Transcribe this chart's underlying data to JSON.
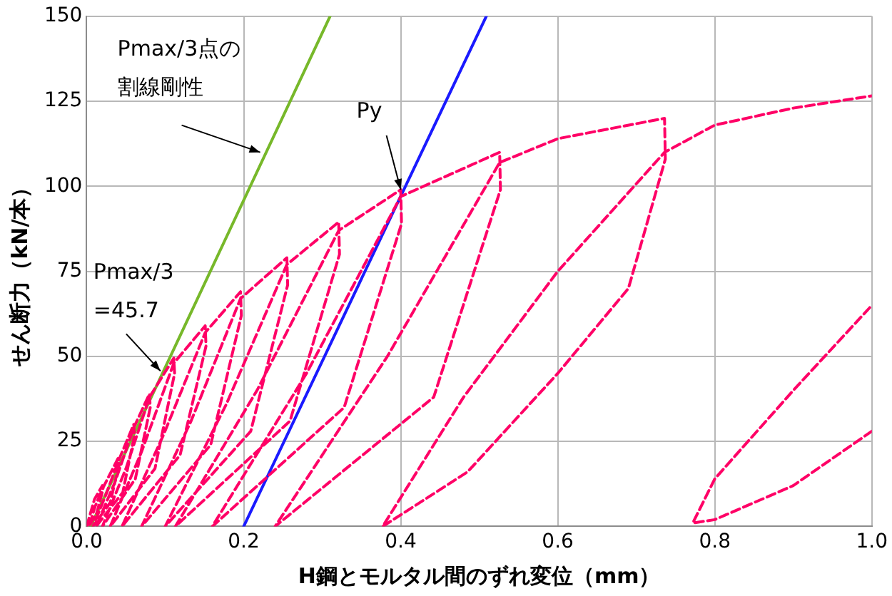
{
  "chart_data": {
    "type": "line",
    "xlabel": "H鋼とモルタル間のずれ変位（mm）",
    "ylabel": "せん断力（kN/本）",
    "xlim": [
      0,
      1
    ],
    "xticks": [
      {
        "value": 0,
        "label": "0.0"
      },
      {
        "value": 0.2,
        "label": "0.2"
      },
      {
        "value": 0.4,
        "label": "0.4"
      },
      {
        "value": 0.6,
        "label": "0.6"
      },
      {
        "value": 0.8,
        "label": "0.8"
      },
      {
        "value": 1,
        "label": "1.0"
      }
    ],
    "ylim": [
      0,
      150
    ],
    "yticks": [
      0,
      25,
      50,
      75,
      100,
      125,
      150
    ],
    "grid": true,
    "legend": false,
    "marker": "none",
    "series": [
      {
        "color": "#ff0066",
        "line_style": "dashed",
        "x": [
          0,
          0.01,
          0.02,
          0.021,
          0.013,
          0.003,
          0.011,
          0.02,
          0.04,
          0.041,
          0.03,
          0.008,
          0.024,
          0.04,
          0.06,
          0.061,
          0.046,
          0.012,
          0.036,
          0.06,
          0.08,
          0.081,
          0.062,
          0.02,
          0.05,
          0.08,
          0.111,
          0.112,
          0.087,
          0.03,
          0.07,
          0.111,
          0.151,
          0.152,
          0.119,
          0.045,
          0.098,
          0.151,
          0.196,
          0.197,
          0.158,
          0.07,
          0.133,
          0.196,
          0.255,
          0.256,
          0.209,
          0.1,
          0.178,
          0.255,
          0.321,
          0.322,
          0.259,
          0.113,
          0.217,
          0.321,
          0.4,
          0.401,
          0.328,
          0.16,
          0.28,
          0.4,
          0.526,
          0.527,
          0.442,
          0.24,
          0.383,
          0.526,
          0.6,
          0.736,
          0.737,
          0.69,
          0.6,
          0.485,
          0.377,
          0.48,
          0.6,
          0.736,
          0.8,
          0.9,
          1.0,
          null,
          1.0,
          0.9,
          0.8,
          0.772,
          0.8,
          0.9,
          1.0
        ],
        "values": [
          0,
          8,
          12,
          11,
          4,
          0,
          6,
          11,
          20,
          18,
          7,
          0,
          9,
          19,
          30,
          27,
          10,
          0,
          13,
          29,
          39,
          35,
          14,
          0,
          17,
          38,
          49.5,
          45,
          17,
          0,
          22,
          48,
          59,
          53,
          21,
          0,
          27,
          57,
          69,
          62,
          24,
          0,
          31,
          67,
          79,
          71,
          28,
          0,
          36,
          77,
          89.5,
          80,
          31,
          0,
          40,
          87,
          99,
          89,
          35,
          0,
          45,
          97,
          110,
          99,
          38,
          0,
          50,
          107,
          114,
          120,
          108,
          70,
          45,
          16,
          0,
          38,
          75,
          110,
          118,
          123,
          126.6,
          null,
          28,
          12,
          2,
          1,
          14,
          40,
          65
        ]
      },
      {
        "color": "#77b82a",
        "line_style": "solid",
        "x": [
          0.005,
          0.31
        ],
        "values": [
          0,
          150
        ]
      },
      {
        "color": "#1a1aff",
        "line_style": "solid",
        "x": [
          0.2,
          0.509
        ],
        "values": [
          0,
          150
        ]
      }
    ],
    "annotations": [
      {
        "text": "Pmax/3点の割線剛性",
        "x": 0.221,
        "y": 110
      },
      {
        "text": "Py",
        "x": 0.4,
        "y": 99
      },
      {
        "text": "Pmax/3\n=45.7",
        "x": 0.094,
        "y": 45.7
      }
    ]
  }
}
